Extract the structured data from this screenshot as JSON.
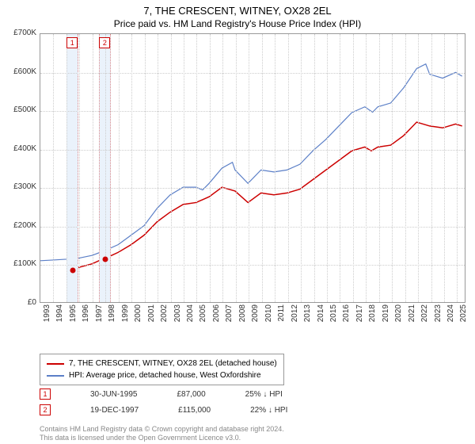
{
  "title": "7, THE CRESCENT, WITNEY, OX28 2EL",
  "subtitle": "Price paid vs. HM Land Registry's House Price Index (HPI)",
  "chart": {
    "type": "line",
    "background_color": "#ffffff",
    "grid_color": "#cccccc",
    "border_color": "#999999",
    "x_start": 1993,
    "x_end": 2025.7,
    "x_ticks": [
      1993,
      1994,
      1995,
      1996,
      1997,
      1998,
      1999,
      2000,
      2001,
      2002,
      2003,
      2004,
      2005,
      2006,
      2007,
      2008,
      2009,
      2010,
      2011,
      2012,
      2013,
      2014,
      2015,
      2016,
      2017,
      2018,
      2019,
      2020,
      2021,
      2022,
      2023,
      2024,
      2025
    ],
    "ylim": [
      0,
      700000
    ],
    "y_ticks": [
      0,
      100000,
      200000,
      300000,
      400000,
      500000,
      600000,
      700000
    ],
    "y_tick_labels": [
      "£0",
      "£100K",
      "£200K",
      "£300K",
      "£400K",
      "£500K",
      "£600K",
      "£700K"
    ],
    "bands": [
      {
        "start": 1995.0,
        "end": 1995.9
      },
      {
        "start": 1997.5,
        "end": 1998.4
      }
    ],
    "markers": [
      {
        "label": "1",
        "x": 1995.45
      },
      {
        "label": "2",
        "x": 1997.95
      }
    ],
    "series": [
      {
        "name": "7, THE CRESCENT, WITNEY, OX28 2EL (detached house)",
        "color": "#cc0000",
        "line_width": 1.5,
        "data": [
          [
            1995.5,
            87000
          ],
          [
            1996,
            91000
          ],
          [
            1997,
            100000
          ],
          [
            1997.96,
            115000
          ],
          [
            1998.5,
            122000
          ],
          [
            1999,
            130000
          ],
          [
            2000,
            150000
          ],
          [
            2001,
            175000
          ],
          [
            2002,
            210000
          ],
          [
            2003,
            235000
          ],
          [
            2004,
            255000
          ],
          [
            2005,
            260000
          ],
          [
            2006,
            275000
          ],
          [
            2007,
            300000
          ],
          [
            2008,
            290000
          ],
          [
            2009,
            260000
          ],
          [
            2010,
            285000
          ],
          [
            2011,
            280000
          ],
          [
            2012,
            285000
          ],
          [
            2013,
            295000
          ],
          [
            2014,
            320000
          ],
          [
            2015,
            345000
          ],
          [
            2016,
            370000
          ],
          [
            2017,
            395000
          ],
          [
            2018,
            405000
          ],
          [
            2018.5,
            395000
          ],
          [
            2019,
            405000
          ],
          [
            2020,
            410000
          ],
          [
            2021,
            435000
          ],
          [
            2022,
            470000
          ],
          [
            2023,
            460000
          ],
          [
            2024,
            455000
          ],
          [
            2025,
            465000
          ],
          [
            2025.5,
            460000
          ]
        ],
        "dots": [
          [
            1995.5,
            87000
          ],
          [
            1997.96,
            115000
          ]
        ]
      },
      {
        "name": "HPI: Average price, detached house, West Oxfordshire",
        "color": "#5b7fc7",
        "line_width": 1.2,
        "data": [
          [
            1993,
            108000
          ],
          [
            1994,
            110000
          ],
          [
            1995,
            112000
          ],
          [
            1996,
            115000
          ],
          [
            1997,
            122000
          ],
          [
            1998,
            135000
          ],
          [
            1999,
            150000
          ],
          [
            2000,
            175000
          ],
          [
            2001,
            200000
          ],
          [
            2002,
            245000
          ],
          [
            2003,
            280000
          ],
          [
            2004,
            300000
          ],
          [
            2005,
            300000
          ],
          [
            2005.5,
            293000
          ],
          [
            2006,
            310000
          ],
          [
            2007,
            350000
          ],
          [
            2007.8,
            365000
          ],
          [
            2008,
            345000
          ],
          [
            2009,
            310000
          ],
          [
            2010,
            345000
          ],
          [
            2011,
            340000
          ],
          [
            2012,
            345000
          ],
          [
            2013,
            360000
          ],
          [
            2014,
            395000
          ],
          [
            2015,
            425000
          ],
          [
            2016,
            460000
          ],
          [
            2017,
            495000
          ],
          [
            2018,
            510000
          ],
          [
            2018.6,
            496000
          ],
          [
            2019,
            510000
          ],
          [
            2020,
            520000
          ],
          [
            2021,
            560000
          ],
          [
            2022,
            610000
          ],
          [
            2022.7,
            622000
          ],
          [
            2023,
            595000
          ],
          [
            2024,
            585000
          ],
          [
            2025,
            600000
          ],
          [
            2025.5,
            590000
          ]
        ]
      }
    ]
  },
  "legend": {
    "items": [
      {
        "color": "#cc0000",
        "label": "7, THE CRESCENT, WITNEY, OX28 2EL (detached house)"
      },
      {
        "color": "#5b7fc7",
        "label": "HPI: Average price, detached house, West Oxfordshire"
      }
    ]
  },
  "sales": [
    {
      "num": "1",
      "date": "30-JUN-1995",
      "price": "£87,000",
      "pct": "25% ↓ HPI"
    },
    {
      "num": "2",
      "date": "19-DEC-1997",
      "price": "£115,000",
      "pct": "22% ↓ HPI"
    }
  ],
  "footer": {
    "line1": "Contains HM Land Registry data © Crown copyright and database right 2024.",
    "line2": "This data is licensed under the Open Government Licence v3.0."
  }
}
